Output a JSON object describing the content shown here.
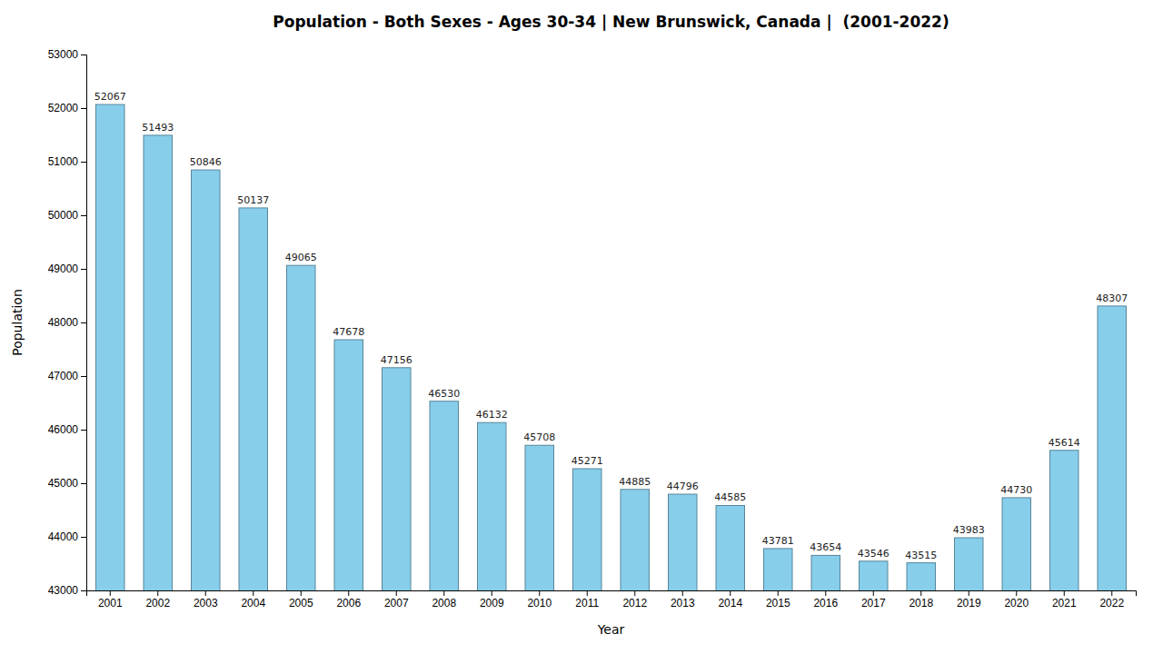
{
  "chart_data": {
    "type": "bar",
    "title": "Population - Both Sexes - Ages 30-34 | New Brunswick, Canada |  (2001-2022)",
    "xlabel": "Year",
    "ylabel": "Population",
    "categories": [
      "2001",
      "2002",
      "2003",
      "2004",
      "2005",
      "2006",
      "2007",
      "2008",
      "2009",
      "2010",
      "2011",
      "2012",
      "2013",
      "2014",
      "2015",
      "2016",
      "2017",
      "2018",
      "2019",
      "2020",
      "2021",
      "2022"
    ],
    "values": [
      52067,
      51493,
      50846,
      50137,
      49065,
      47678,
      47156,
      46530,
      46132,
      45708,
      45271,
      44885,
      44796,
      44585,
      43781,
      43654,
      43546,
      43515,
      43983,
      44730,
      45614,
      48307
    ],
    "color": "#87ceeb",
    "ylim": [
      43000,
      53000
    ],
    "yticks": [
      43000,
      44000,
      45000,
      46000,
      47000,
      48000,
      49000,
      50000,
      51000,
      52000,
      53000
    ],
    "grid": false,
    "data_labels": true
  }
}
